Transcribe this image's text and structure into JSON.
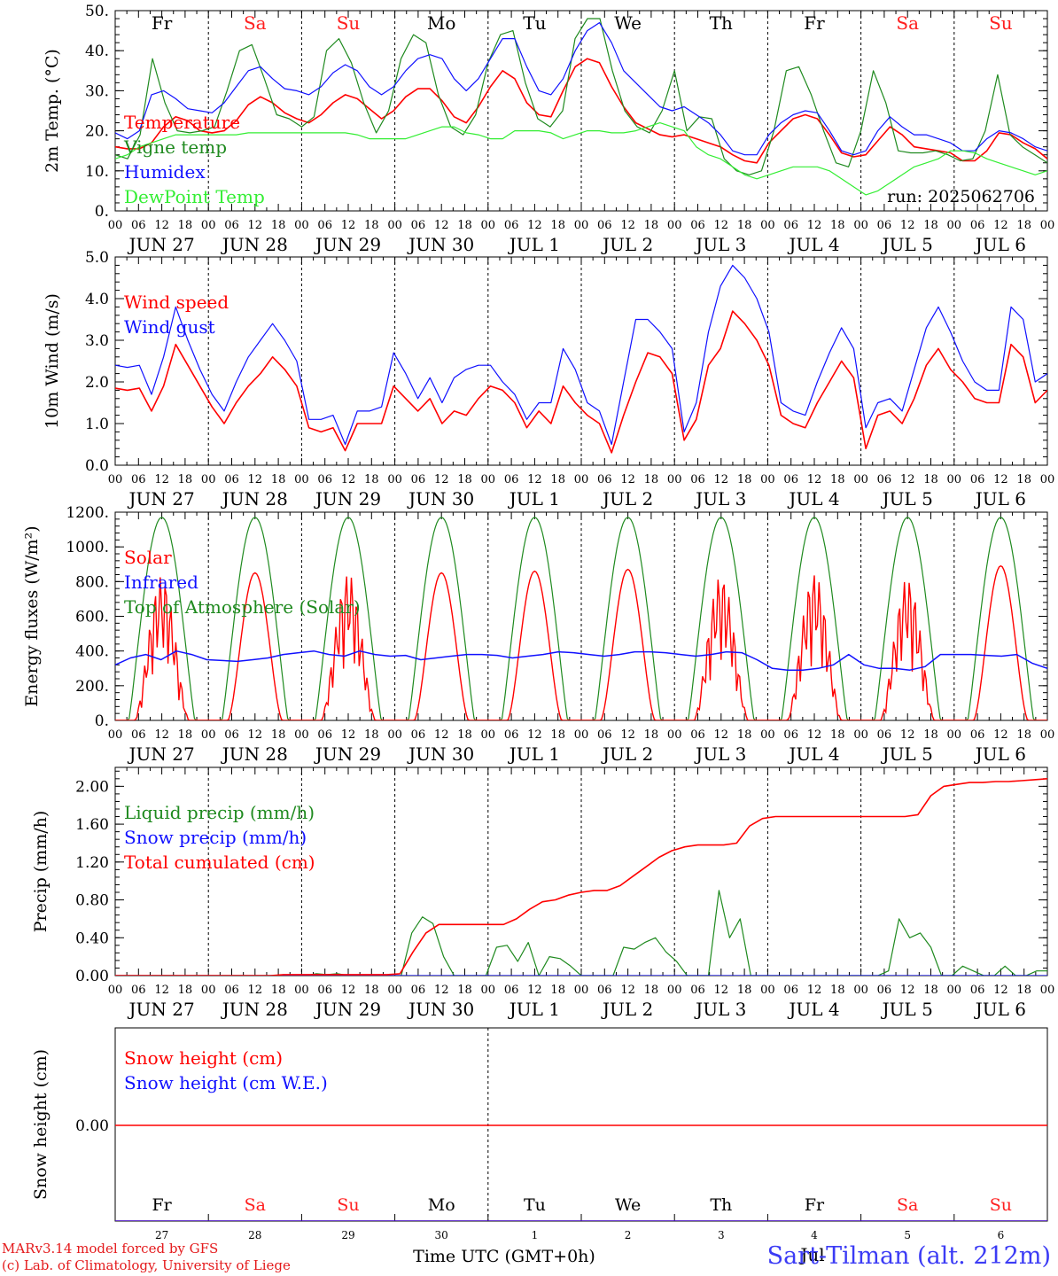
{
  "run_label": "run: 2025062706",
  "footer": {
    "model": "MARv3.14 model forced by GFS",
    "lab": "(c) Lab. of Climatology, University of Liege",
    "station": "Sart-Tilman (alt. 212m)",
    "time_label": "Time UTC (GMT+0h)"
  },
  "weekdays": [
    "Fr",
    "Sa",
    "Su",
    "Mo",
    "Tu",
    "We",
    "Th",
    "Fr",
    "Sa",
    "Su"
  ],
  "day_numbers": [
    "27",
    "28",
    "29",
    "30",
    "1",
    "2",
    "3",
    "4",
    "5",
    "6"
  ],
  "date_labels": [
    "JUN 27",
    "JUN 28",
    "JUN 29",
    "JUN 30",
    "JUL  1",
    "JUL  2",
    "JUL  3",
    "JUL  4",
    "JUL  5",
    "JUL  6"
  ],
  "month_mark": "Jul",
  "hour_ticks": [
    "00",
    "06",
    "12",
    "18"
  ],
  "colors": {
    "red": "#ff0000",
    "green": "#1f8a1f",
    "blue": "#1010ff",
    "lightgreen": "#33ee33",
    "weekend": "#ff2020",
    "axis": "#000000"
  },
  "chart_data": [
    {
      "type": "line",
      "ylabel": "2m Temp. (°C)",
      "ylim": [
        0,
        50
      ],
      "yticks": [
        "0.",
        "10.",
        "20.",
        "30.",
        "40.",
        "50."
      ],
      "series": [
        {
          "name": "Temperature",
          "color": "red",
          "y": [
            16,
            15.5,
            15.5,
            17,
            21,
            23.5,
            22.5,
            20,
            19.5,
            20,
            22.5,
            26.5,
            28.5,
            27,
            24.5,
            23,
            22,
            24,
            27,
            29,
            28,
            25.5,
            23,
            25,
            28.5,
            30.5,
            30.5,
            27.5,
            23.5,
            22,
            26,
            31,
            35,
            33,
            27,
            24,
            23.5,
            30,
            36,
            38,
            37,
            31,
            26,
            22,
            20.5,
            19,
            18.5,
            19,
            18,
            17,
            16,
            14,
            12.5,
            12,
            17,
            20,
            23,
            24,
            23,
            19,
            14.5,
            13.5,
            14,
            17.5,
            21,
            19,
            16,
            15.5,
            15,
            14.5,
            12.5,
            12.5,
            15,
            19.5,
            19,
            17,
            15.5,
            13
          ]
        },
        {
          "name": "Vigne temp",
          "color": "green",
          "y": [
            14,
            13,
            19,
            38,
            27,
            20,
            19.5,
            20,
            21,
            30,
            40,
            41.5,
            33,
            24,
            23,
            21,
            23.5,
            40,
            43,
            37,
            27,
            19.5,
            25,
            38,
            44,
            42,
            29,
            21,
            19,
            24,
            37,
            44,
            45,
            32,
            23,
            21,
            25,
            43,
            48,
            48,
            35,
            25,
            21,
            19.5,
            25,
            35,
            20,
            23.5,
            23,
            13,
            10,
            9,
            10,
            20,
            35,
            36,
            29,
            20,
            12,
            11,
            20,
            35,
            27,
            15,
            14.5,
            14.5,
            15,
            14,
            12.5,
            13,
            20,
            34,
            19,
            16,
            14,
            12
          ]
        },
        {
          "name": "Humidex",
          "color": "blue",
          "y": [
            19.5,
            18,
            20,
            29,
            30,
            28,
            25.5,
            25,
            24.5,
            27,
            31,
            35,
            36,
            33,
            30.5,
            30,
            29,
            31,
            34.5,
            36.5,
            35,
            31,
            29,
            31,
            35,
            38,
            39,
            38,
            33,
            30,
            33,
            38,
            43,
            43,
            36,
            30,
            29,
            33,
            40,
            45,
            47,
            42,
            35,
            32,
            29,
            26,
            25,
            26,
            24,
            22,
            19,
            15,
            14,
            14,
            19,
            22,
            24,
            25,
            24.5,
            20,
            15,
            14,
            15,
            20,
            23.5,
            21,
            19,
            19,
            18,
            17,
            15,
            15,
            18,
            20,
            19.5,
            18,
            16,
            15
          ]
        },
        {
          "name": "DewPoint Temp",
          "color": "lightgreen",
          "y": [
            13,
            14,
            16,
            17,
            18,
            19,
            19,
            19,
            19,
            19,
            19,
            19.5,
            19.5,
            19.5,
            19.5,
            19.5,
            19.5,
            19.5,
            19.5,
            19.5,
            19,
            18,
            18,
            18,
            18,
            19,
            20,
            21,
            21,
            19.5,
            19,
            18,
            18,
            20,
            20,
            20,
            19.5,
            18,
            19,
            20,
            20,
            19.5,
            19.5,
            20,
            21,
            22,
            21,
            20,
            16,
            14,
            13,
            11,
            9,
            8,
            9,
            10,
            11,
            11,
            11,
            10,
            8,
            6,
            4,
            5,
            7,
            9,
            11,
            12,
            13,
            15,
            15,
            14.5,
            13,
            12,
            11,
            10,
            9,
            10
          ]
        }
      ]
    },
    {
      "type": "line",
      "ylabel": "10m Wind (m/s)",
      "ylim": [
        0,
        5
      ],
      "yticks": [
        "0.0",
        "1.0",
        "2.0",
        "3.0",
        "4.0",
        "5.0"
      ],
      "series": [
        {
          "name": "Wind speed",
          "color": "red",
          "y": [
            1.85,
            1.8,
            1.85,
            1.3,
            1.9,
            2.9,
            2.4,
            1.9,
            1.4,
            1.0,
            1.5,
            1.9,
            2.2,
            2.6,
            2.3,
            1.9,
            0.9,
            0.8,
            0.9,
            0.35,
            1.0,
            1.0,
            1.0,
            1.9,
            1.6,
            1.3,
            1.6,
            1.0,
            1.3,
            1.2,
            1.6,
            1.9,
            1.8,
            1.5,
            0.9,
            1.3,
            1.0,
            1.9,
            1.5,
            1.2,
            1.0,
            0.3,
            1.2,
            2.0,
            2.7,
            2.6,
            2.2,
            0.6,
            1.1,
            2.4,
            2.8,
            3.7,
            3.4,
            3.0,
            2.4,
            1.2,
            1.0,
            0.9,
            1.5,
            2.0,
            2.5,
            2.1,
            0.4,
            1.2,
            1.3,
            1.0,
            1.6,
            2.4,
            2.8,
            2.3,
            2.0,
            1.6,
            1.5,
            1.5,
            2.9,
            2.6,
            1.5,
            1.8
          ]
        },
        {
          "name": "Wind gust",
          "color": "blue",
          "y": [
            2.4,
            2.35,
            2.4,
            1.7,
            2.6,
            3.8,
            3.0,
            2.3,
            1.7,
            1.3,
            2.0,
            2.6,
            3.0,
            3.4,
            3.0,
            2.5,
            1.1,
            1.1,
            1.2,
            0.5,
            1.3,
            1.3,
            1.4,
            2.7,
            2.2,
            1.6,
            2.1,
            1.5,
            2.1,
            2.3,
            2.4,
            2.4,
            2.0,
            1.7,
            1.1,
            1.5,
            1.5,
            2.8,
            2.3,
            1.5,
            1.3,
            0.5,
            2.0,
            3.5,
            3.5,
            3.2,
            2.8,
            0.8,
            1.5,
            3.2,
            4.3,
            4.8,
            4.5,
            4.0,
            3.2,
            1.5,
            1.3,
            1.2,
            2.0,
            2.7,
            3.3,
            2.8,
            0.9,
            1.5,
            1.6,
            1.3,
            2.3,
            3.3,
            3.8,
            3.2,
            2.5,
            2.0,
            1.8,
            1.8,
            3.8,
            3.5,
            2.0,
            2.2
          ]
        }
      ]
    },
    {
      "type": "line",
      "ylabel": "Energy fluxes (W/m²)",
      "ylim": [
        0,
        1200
      ],
      "yticks": [
        "0.",
        "200.",
        "400.",
        "600.",
        "800.",
        "1000.",
        "1200."
      ],
      "series": [
        {
          "name": "Solar",
          "color": "red",
          "peaks": [
            830,
            850,
            850,
            850,
            860,
            870,
            840,
            850,
            820,
            890
          ]
        },
        {
          "name": "Infrared",
          "color": "blue",
          "y": [
            320,
            360,
            380,
            350,
            400,
            380,
            350,
            345,
            340,
            350,
            360,
            380,
            390,
            400,
            380,
            370,
            400,
            380,
            370,
            375,
            350,
            360,
            370,
            380,
            380,
            375,
            360,
            370,
            380,
            395,
            390,
            380,
            370,
            380,
            395,
            395,
            390,
            380,
            370,
            380,
            395,
            390,
            350,
            300,
            290,
            290,
            300,
            320,
            380,
            320,
            300,
            300,
            290,
            310,
            380,
            380,
            380,
            375,
            370,
            380,
            330,
            300
          ]
        },
        {
          "name": "Top of Atmosphere (Solar)",
          "color": "green",
          "peak": 1170
        }
      ]
    },
    {
      "type": "line",
      "ylabel": "Precip (mm/h)",
      "ylim": [
        0,
        2.2
      ],
      "yticks": [
        "0.00",
        "0.40",
        "0.80",
        "1.20",
        "1.60",
        "2.00"
      ],
      "series": [
        {
          "name": "Liquid precip (mm/h)",
          "color": "green",
          "y": [
            0,
            0,
            0,
            0,
            0,
            0,
            0,
            0,
            0,
            0,
            0,
            0,
            0,
            0,
            0,
            0,
            0,
            0,
            0,
            0.02,
            0.01,
            0.02,
            0,
            0,
            0,
            0,
            0,
            0,
            0.45,
            0.62,
            0.55,
            0.2,
            0,
            0,
            0,
            0,
            0.3,
            0.32,
            0.15,
            0.35,
            0,
            0.2,
            0.18,
            0.1,
            0,
            0,
            0,
            0,
            0.3,
            0.28,
            0.35,
            0.4,
            0.25,
            0.15,
            0,
            0,
            0,
            0.9,
            0.4,
            0.6,
            0,
            0,
            0,
            0,
            0,
            0,
            0,
            0,
            0,
            0,
            0,
            0,
            0,
            0.05,
            0.6,
            0.4,
            0.45,
            0.3,
            0,
            0,
            0.1,
            0.05,
            0,
            0,
            0.1,
            0,
            0,
            0.05,
            0.05
          ]
        },
        {
          "name": "Snow precip (mm/h)",
          "color": "blue",
          "y": [
            0,
            0
          ]
        },
        {
          "name": "Total cumulated (cm)",
          "color": "red",
          "y": [
            0,
            0,
            0,
            0,
            0,
            0,
            0,
            0,
            0,
            0,
            0,
            0,
            0,
            0.01,
            0.01,
            0.01,
            0.01,
            0.01,
            0.01,
            0.01,
            0.01,
            0.01,
            0.02,
            0.25,
            0.45,
            0.54,
            0.54,
            0.54,
            0.54,
            0.54,
            0.54,
            0.6,
            0.7,
            0.78,
            0.8,
            0.85,
            0.88,
            0.9,
            0.9,
            0.95,
            1.05,
            1.15,
            1.25,
            1.32,
            1.36,
            1.38,
            1.38,
            1.38,
            1.4,
            1.58,
            1.66,
            1.68,
            1.68,
            1.68,
            1.68,
            1.68,
            1.68,
            1.68,
            1.68,
            1.68,
            1.68,
            1.68,
            1.7,
            1.9,
            2.0,
            2.02,
            2.04,
            2.04,
            2.05,
            2.05,
            2.06,
            2.07,
            2.08
          ]
        }
      ]
    },
    {
      "type": "line",
      "ylabel": "Snow height (cm)",
      "yticks": [
        "0.00"
      ],
      "series": [
        {
          "name": "Snow height (cm)",
          "color": "red",
          "y": [
            0,
            0
          ]
        },
        {
          "name": "Snow height (cm W.E.)",
          "color": "blue",
          "y": [
            0,
            0
          ]
        }
      ]
    }
  ]
}
